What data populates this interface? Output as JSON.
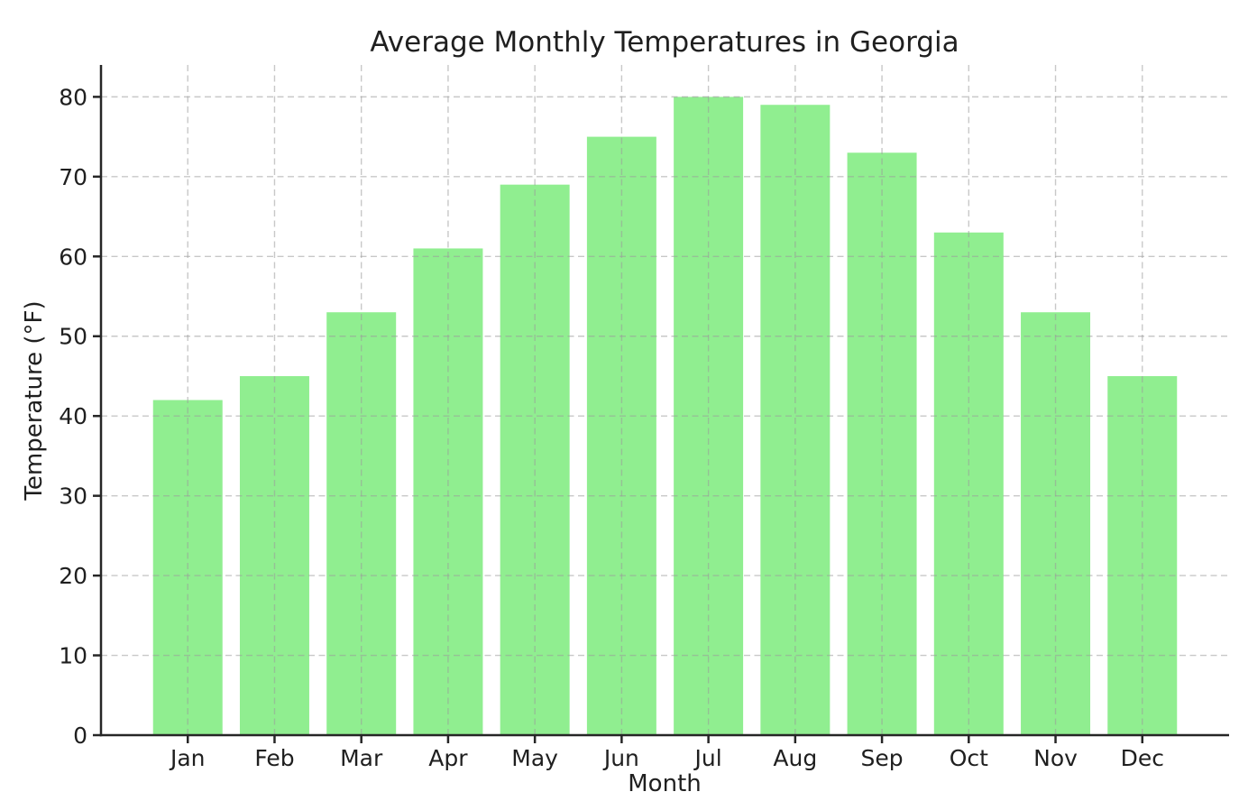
{
  "chart_data": {
    "type": "bar",
    "title": "Average Monthly Temperatures in Georgia",
    "xlabel": "Month",
    "ylabel": "Temperature (°F)",
    "categories": [
      "Jan",
      "Feb",
      "Mar",
      "Apr",
      "May",
      "Jun",
      "Jul",
      "Aug",
      "Sep",
      "Oct",
      "Nov",
      "Dec"
    ],
    "values": [
      42,
      45,
      53,
      61,
      69,
      75,
      80,
      79,
      73,
      63,
      53,
      45
    ],
    "yticks": [
      0,
      10,
      20,
      30,
      40,
      50,
      60,
      70,
      80
    ],
    "ylim": [
      0,
      84
    ],
    "bar_color": "#90EE90",
    "grid_on": true,
    "grid_style": "dashed",
    "grid_color": "#9a9a9a",
    "axis_color": "#262626",
    "background_color": "#ffffff",
    "legend": null
  }
}
